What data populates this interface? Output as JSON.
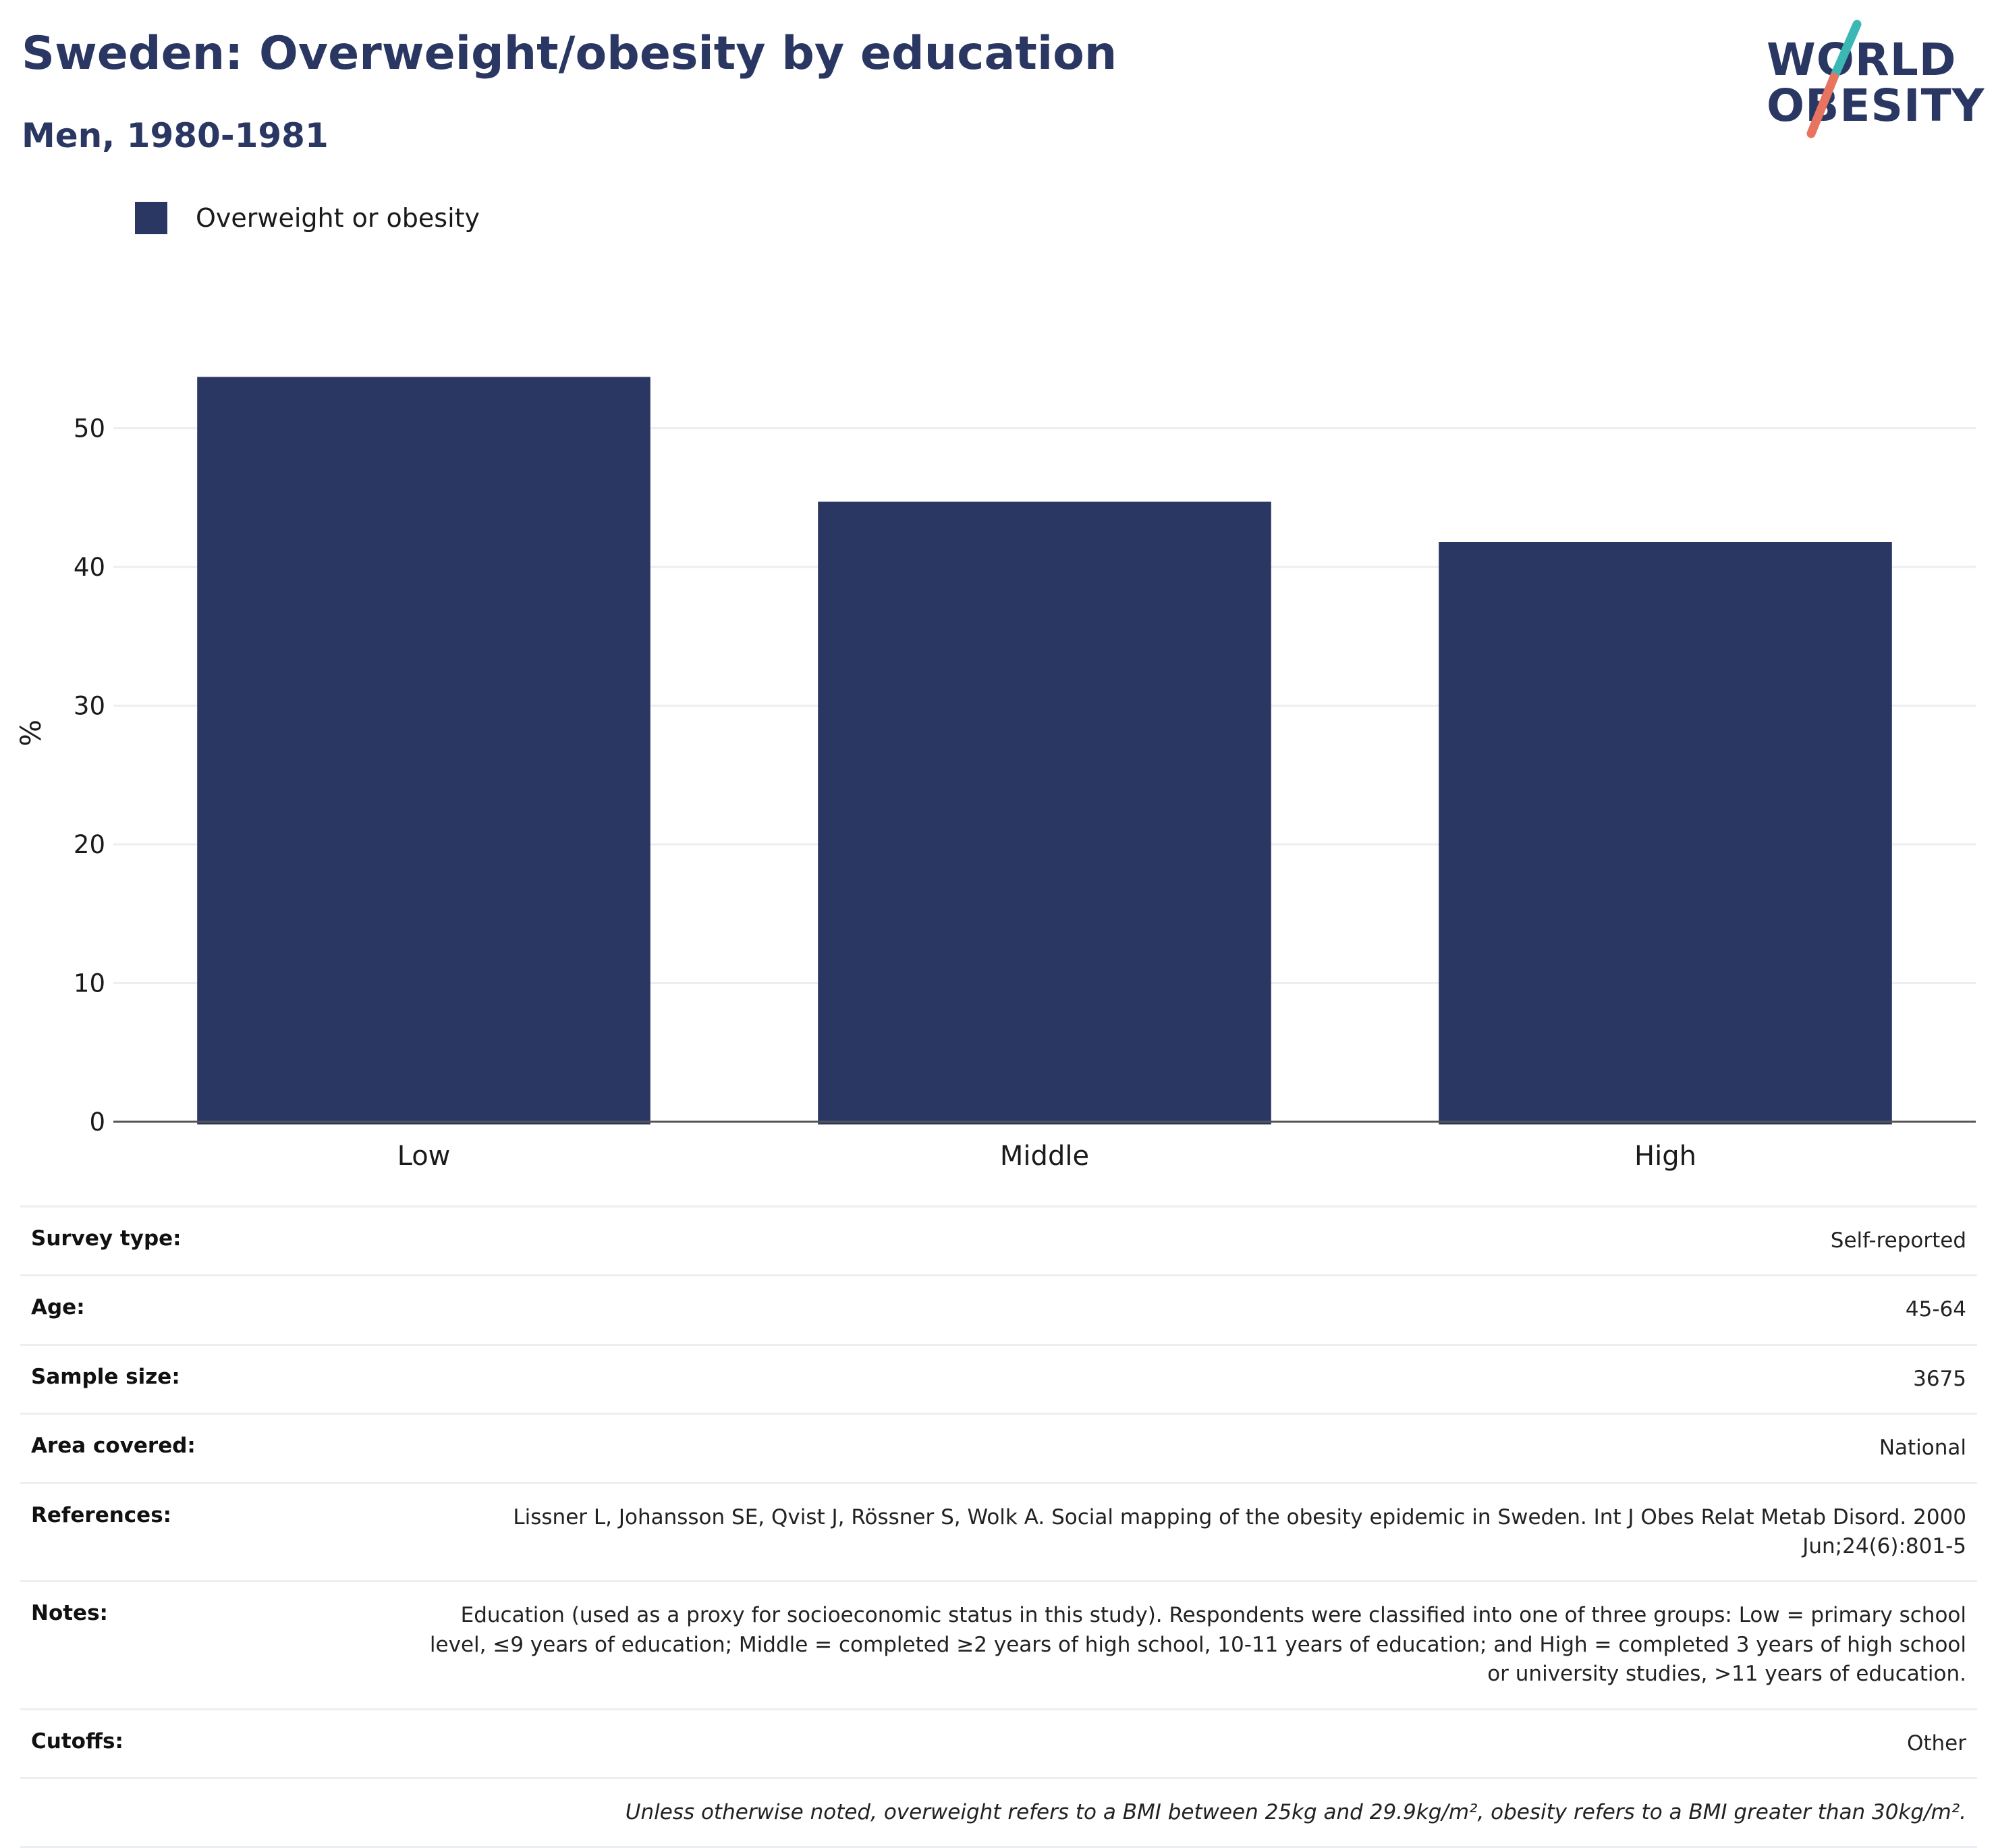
{
  "title": "Sweden: Overweight/obesity by education",
  "subtitle": "Men, 1980-1981",
  "logo": {
    "line1": "WORLD",
    "line2": "OBESITY"
  },
  "colors": {
    "bar": "#2b3763",
    "title": "#2b3763",
    "logo_teal": "#3bb7b4",
    "logo_coral": "#e8735e",
    "grid": "#eceef2",
    "axis": "#555555"
  },
  "chart_data": {
    "type": "bar",
    "categories": [
      "Low",
      "Middle",
      "High"
    ],
    "series": [
      {
        "name": "Overweight or obesity",
        "values": [
          53.7,
          44.7,
          41.8
        ]
      }
    ],
    "ylabel": "%",
    "xlabel": "",
    "ylim": [
      0,
      56
    ],
    "yticks": [
      0,
      10,
      20,
      30,
      40,
      50
    ],
    "grid": true,
    "legend": "top-left"
  },
  "info": {
    "rows": [
      {
        "label": "Survey type:",
        "value": "Self-reported"
      },
      {
        "label": "Age:",
        "value": "45-64"
      },
      {
        "label": "Sample size:",
        "value": "3675"
      },
      {
        "label": "Area covered:",
        "value": "National"
      },
      {
        "label": "References:",
        "value": "Lissner L, Johansson SE, Qvist J, Rössner S, Wolk A. Social mapping of the obesity epidemic in Sweden. Int J Obes Relat Metab Disord. 2000 Jun;24(6):801-5"
      },
      {
        "label": "Notes:",
        "value": "Education (used as a proxy for socioeconomic status in this study). Respondents were classified into one of three groups: Low = primary school level, ≤9 years of education; Middle = completed ≥2 years of high school, 10-11 years of education; and High = completed 3 years of high school or university studies, >11 years of education."
      },
      {
        "label": "Cutoffs:",
        "value": "Other"
      }
    ],
    "footnote": "Unless otherwise noted, overweight refers to a BMI between 25kg and 29.9kg/m², obesity refers to a BMI greater than 30kg/m²."
  }
}
